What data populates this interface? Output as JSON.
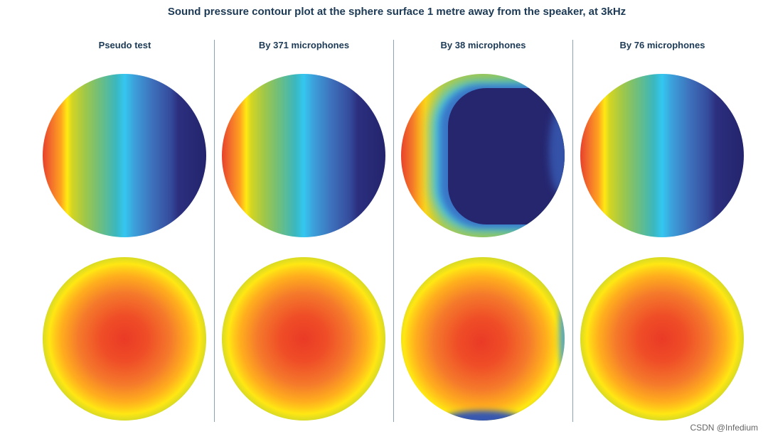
{
  "figure": {
    "title": "Sound pressure contour plot at the sphere surface 1 metre away from the speaker, at 3kHz",
    "columns": [
      {
        "label": "Pseudo test"
      },
      {
        "label": "By 371 microphones"
      },
      {
        "label": "By 38 microphones"
      },
      {
        "label": "By 76 microphones"
      }
    ]
  },
  "watermark": "CSDN @Infedium",
  "colors": {
    "title_text": "#1c3a55",
    "divider": "#8aa3b6",
    "colormap": [
      "#24246d",
      "#3d6db8",
      "#35c7f0",
      "#73bf78",
      "#ffe812",
      "#ffa11f",
      "#e8412b"
    ]
  }
}
